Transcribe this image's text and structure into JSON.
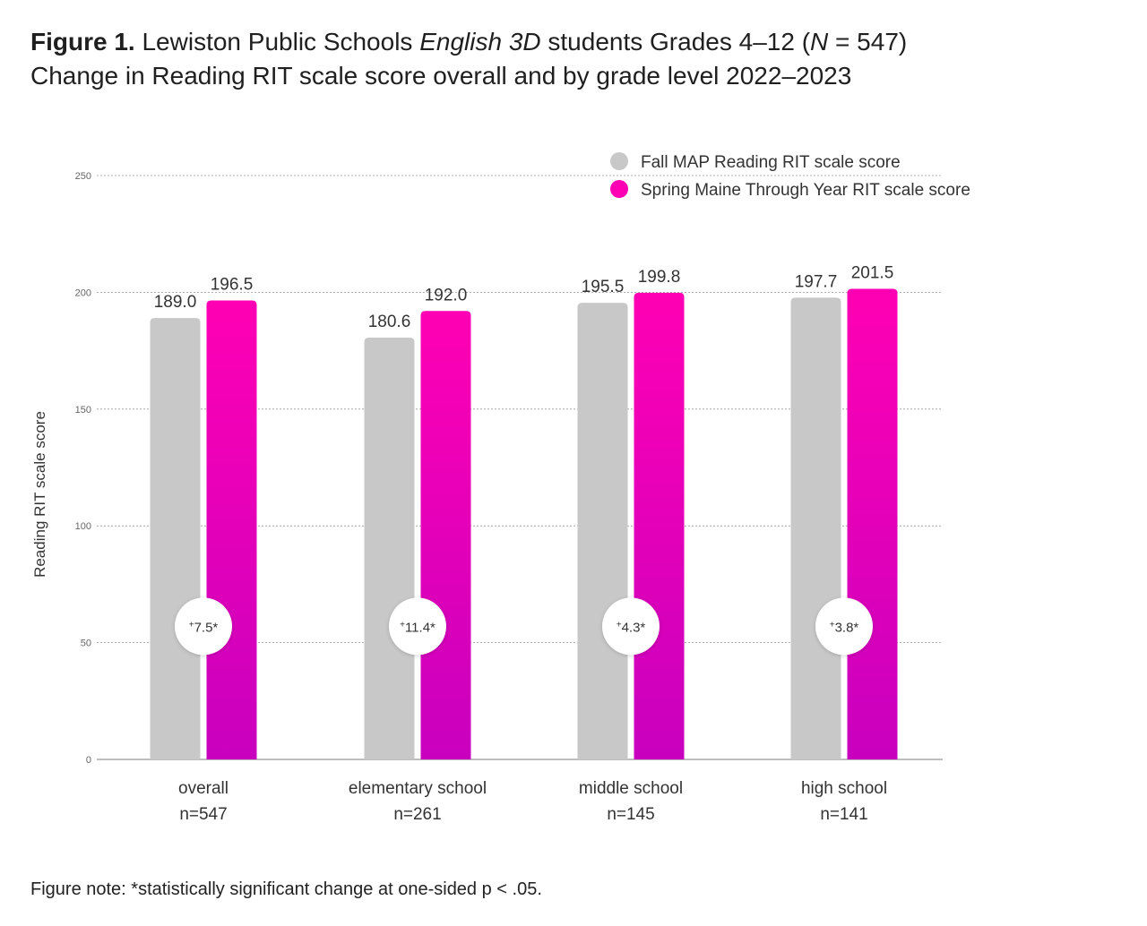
{
  "title": {
    "figure_label": "Figure 1.",
    "line1_a": " Lewiston Public Schools ",
    "line1_italic": "English 3D",
    "line1_b": " students Grades 4–12 (",
    "line1_n": "N",
    "line1_c": " = 547)",
    "line2": "Change in Reading RIT scale score overall and by grade level 2022–2023"
  },
  "note": "Figure note: *statistically significant change at one-sided p < .05.",
  "colors": {
    "fall": "#c8c8c8",
    "spring_top": "#ff00b4",
    "spring_bottom": "#c800be",
    "grid": "#999999",
    "axis": "#999999"
  },
  "chart_data": {
    "type": "bar",
    "title": "Change in Reading RIT scale score overall and by grade level 2022–2023",
    "ylabel": "Reading RIT scale score",
    "xlabel": "",
    "ylim": [
      0,
      250
    ],
    "yticks": [
      0,
      50,
      100,
      150,
      200,
      250
    ],
    "grid": true,
    "legend_position": "top-right",
    "categories": [
      "overall",
      "elementary school",
      "middle school",
      "high school"
    ],
    "category_n": [
      "n=547",
      "n=261",
      "n=145",
      "n=141"
    ],
    "series": [
      {
        "name": "Fall MAP Reading RIT scale score",
        "values": [
          189.0,
          180.6,
          195.5,
          197.7
        ],
        "labels": [
          "189.0",
          "180.6",
          "195.5",
          "197.7"
        ]
      },
      {
        "name": "Spring Maine Through Year RIT scale score",
        "values": [
          196.5,
          192.0,
          199.8,
          201.5
        ],
        "labels": [
          "196.5",
          "192.0",
          "199.8",
          "201.5"
        ]
      }
    ],
    "changes": [
      "7.5*",
      "11.4*",
      "4.3*",
      "3.8*"
    ],
    "change_prefix": "+"
  }
}
